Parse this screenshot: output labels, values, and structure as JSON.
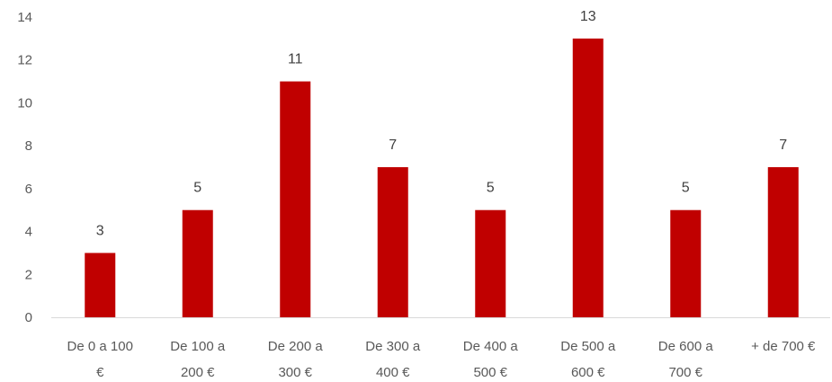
{
  "chart_data": {
    "type": "bar",
    "categories": [
      [
        "De 0 a 100",
        "€"
      ],
      [
        "De 100 a",
        "200 €"
      ],
      [
        "De 200 a",
        "300 €"
      ],
      [
        "De 300 a",
        "400 €"
      ],
      [
        "De 400 a",
        "500 €"
      ],
      [
        "De 500 a",
        "600 €"
      ],
      [
        "De 600 a",
        "700 €"
      ],
      [
        "+ de 700 €"
      ]
    ],
    "values": [
      3,
      5,
      11,
      7,
      5,
      13,
      5,
      7
    ],
    "ylim": [
      0,
      14
    ],
    "yticks": [
      0,
      2,
      4,
      6,
      8,
      10,
      12,
      14
    ],
    "grid": false,
    "data_labels": true,
    "bar_color": "#c00000",
    "axis_color": "#d9d9d9"
  }
}
